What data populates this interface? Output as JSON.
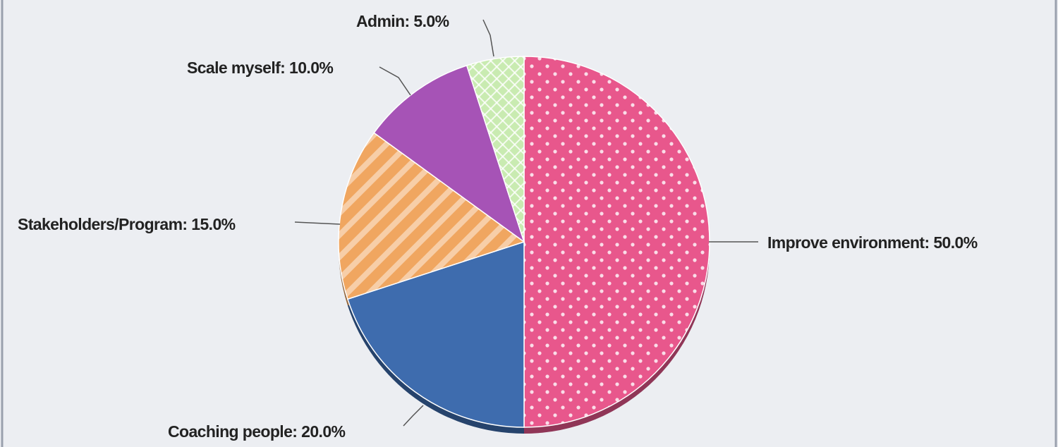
{
  "chart_data": {
    "type": "pie",
    "labels": [
      "Improve environment: 50.0%",
      "Coaching people: 20.0%",
      "Stakeholders/Program: 15.0%",
      "Scale myself: 10.0%",
      "Admin: 5.0%"
    ],
    "values": [
      50,
      20,
      15,
      10,
      5
    ],
    "colors": [
      "#e8578c",
      "#3e6cae",
      "#f0a660",
      "#a653b6",
      "#c9ebb1"
    ]
  }
}
